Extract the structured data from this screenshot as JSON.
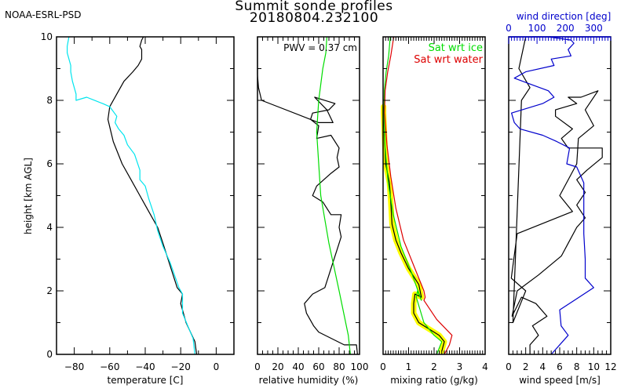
{
  "header": {
    "organization": "NOAA-ESRL-PSD",
    "title": "Summit sonde profiles",
    "subtitle": "20180804.232100"
  },
  "colors": {
    "temperature": "#000000",
    "dewpoint": "#00e5ee",
    "rh": "#000000",
    "rh_ice": "#00dd00",
    "mixing_ratio": "#000000",
    "mixing_ratio_uncertainty": "#ffff00",
    "sat_ice": "#00dd00",
    "sat_water": "#dd0000",
    "wind_speed": "#000000",
    "wind_direction": "#0000cc"
  },
  "chart_data": [
    {
      "type": "line",
      "name": "temperature",
      "xlabel": "temperature [C]",
      "ylabel": "height [km AGL]",
      "xlim": [
        -90,
        10
      ],
      "ylim": [
        0,
        10
      ],
      "xticks": [
        "-80",
        "-60",
        "-40",
        "-20",
        "0"
      ],
      "xtick_values": [
        -80,
        -60,
        -40,
        -20,
        0
      ],
      "yticks": [
        "0",
        "2",
        "4",
        "6",
        "8",
        "10"
      ],
      "ytick_values": [
        0,
        2,
        4,
        6,
        8,
        10
      ],
      "series": [
        {
          "name": "temperature",
          "color_key": "temperature",
          "x": [
            -11,
            -12,
            -17,
            -20,
            -19,
            -22,
            -26,
            -30,
            -33,
            -38,
            -43,
            -48,
            -53,
            -58,
            -61,
            -60,
            -56,
            -52,
            -47,
            -44,
            -42,
            -42,
            -43,
            -42,
            -41
          ],
          "y": [
            0.0,
            0.4,
            1.0,
            1.6,
            1.9,
            2.1,
            2.8,
            3.5,
            4.0,
            4.5,
            5.0,
            5.5,
            6.0,
            6.7,
            7.4,
            7.8,
            8.2,
            8.6,
            8.9,
            9.1,
            9.3,
            9.6,
            9.7,
            9.9,
            10.0
          ]
        },
        {
          "name": "dewpoint",
          "color_key": "dewpoint",
          "x": [
            -12,
            -13,
            -16,
            -19,
            -19,
            -21,
            -26,
            -30,
            -33,
            -35,
            -38,
            -40,
            -43,
            -43,
            -46,
            -50,
            -52,
            -55,
            -57,
            -56,
            -60,
            -64,
            -73,
            -79,
            -79,
            -81,
            -82,
            -82,
            -84,
            -84,
            -83
          ],
          "y": [
            0.0,
            0.5,
            0.9,
            1.3,
            1.9,
            2.1,
            2.9,
            3.4,
            3.9,
            4.4,
            4.9,
            5.3,
            5.5,
            5.8,
            6.3,
            6.6,
            6.9,
            7.1,
            7.3,
            7.5,
            7.8,
            7.9,
            8.1,
            8.0,
            8.2,
            8.6,
            8.9,
            9.1,
            9.5,
            9.7,
            10.0
          ]
        }
      ]
    },
    {
      "type": "line",
      "name": "relative_humidity",
      "xlabel": "relative humidity (%)",
      "xlim": [
        0,
        100
      ],
      "ylim": [
        0,
        10
      ],
      "xticks": [
        "0",
        "20",
        "40",
        "60",
        "80",
        "100"
      ],
      "xtick_values": [
        0,
        20,
        40,
        60,
        80,
        100
      ],
      "annotation": "PWV = 0.37 cm",
      "series": [
        {
          "name": "rh",
          "color_key": "rh",
          "x": [
            98,
            97,
            85,
            60,
            55,
            48,
            46,
            54,
            66,
            70,
            74,
            78,
            82,
            80,
            82,
            72,
            64,
            54,
            58,
            72,
            80,
            78,
            80,
            72,
            58,
            60,
            52,
            54,
            70,
            76,
            56,
            68,
            74,
            60,
            4,
            1,
            0,
            0
          ],
          "y": [
            0.0,
            0.3,
            0.3,
            0.7,
            0.9,
            1.3,
            1.6,
            1.9,
            2.1,
            2.5,
            2.9,
            3.3,
            3.7,
            4.0,
            4.4,
            4.4,
            4.8,
            5.0,
            5.3,
            5.7,
            5.9,
            6.2,
            6.5,
            6.9,
            6.8,
            7.2,
            7.4,
            7.6,
            7.7,
            7.9,
            8.1,
            7.7,
            7.3,
            7.3,
            8.0,
            8.4,
            8.8,
            10.0
          ]
        },
        {
          "name": "rh_wrt_ice",
          "color_key": "rh_ice",
          "x": [
            91,
            89,
            80,
            70,
            62,
            58,
            60,
            64,
            67,
            68
          ],
          "y": [
            0.0,
            0.6,
            2.0,
            3.5,
            5.0,
            7.0,
            8.0,
            9.0,
            9.5,
            10.0
          ]
        }
      ]
    },
    {
      "type": "line",
      "name": "mixing_ratio",
      "xlabel": "mixing ratio (g/kg)",
      "xlim": [
        0,
        4
      ],
      "ylim": [
        0,
        10
      ],
      "xticks": [
        "0",
        "1",
        "2",
        "3",
        "4"
      ],
      "xtick_values": [
        0,
        1,
        2,
        3,
        4
      ],
      "legend": {
        "position": "top-right",
        "entries": [
          "Sat wrt ice",
          "Sat wrt water"
        ]
      },
      "series": [
        {
          "name": "mixing_ratio",
          "color_key": "mixing_ratio",
          "band_color_key": "mixing_ratio_uncertainty",
          "x": [
            2.3,
            2.4,
            2.2,
            1.8,
            1.4,
            1.2,
            1.2,
            1.25,
            1.5,
            1.4,
            1.0,
            0.7,
            0.5,
            0.35,
            0.3,
            0.25,
            0.1,
            0.05,
            0.02,
            0.02
          ],
          "y": [
            0.1,
            0.4,
            0.6,
            0.8,
            1.0,
            1.3,
            1.6,
            1.9,
            1.8,
            2.2,
            2.7,
            3.2,
            3.6,
            4.1,
            4.8,
            5.4,
            6.0,
            7.0,
            7.6,
            7.8
          ]
        },
        {
          "name": "sat_wrt_ice",
          "color_key": "sat_ice",
          "x": [
            2.1,
            2.3,
            2.0,
            1.6,
            1.3,
            1.35,
            1.5,
            1.1,
            0.7,
            0.4,
            0.2,
            0.08,
            0.03,
            0.05,
            0.12,
            0.22,
            0.28
          ],
          "y": [
            0.0,
            0.4,
            0.6,
            1.0,
            1.8,
            2.0,
            1.7,
            2.6,
            3.4,
            4.4,
            5.4,
            6.5,
            7.5,
            8.3,
            8.9,
            9.4,
            10.0
          ]
        },
        {
          "name": "sat_wrt_water",
          "color_key": "sat_water",
          "x": [
            2.4,
            2.6,
            2.7,
            2.1,
            1.6,
            1.65,
            1.6,
            1.2,
            0.8,
            0.5,
            0.3,
            0.15,
            0.06,
            0.08,
            0.18,
            0.3,
            0.42
          ],
          "y": [
            0.0,
            0.3,
            0.6,
            1.1,
            1.7,
            1.8,
            2.0,
            2.8,
            3.6,
            4.6,
            5.6,
            6.6,
            7.6,
            8.3,
            8.9,
            9.4,
            10.0
          ]
        }
      ]
    },
    {
      "type": "line",
      "name": "wind",
      "xlabel": "wind speed [m/s]",
      "xlim": [
        0,
        12
      ],
      "ylim": [
        0,
        10
      ],
      "xticks": [
        "0",
        "2",
        "4",
        "6",
        "8",
        "10",
        "12"
      ],
      "xtick_values": [
        0,
        2,
        4,
        6,
        8,
        10,
        12
      ],
      "top_axis": {
        "label": "wind direction [deg]",
        "xlim": [
          0,
          360
        ],
        "xticks": [
          "0",
          "100",
          "200",
          "300"
        ],
        "xtick_values": [
          0,
          100,
          200,
          300
        ]
      },
      "series": [
        {
          "name": "wind_speed",
          "color_key": "wind_speed",
          "x": [
            2.5,
            2.5,
            3.5,
            2.8,
            4.5,
            3.2,
            1.5,
            0.4,
            1.0,
            3.5,
            6.2,
            7.0,
            8.0,
            9.0,
            8.0,
            9.0,
            8.0,
            9.2,
            11.0,
            11.0,
            7.0,
            6.2,
            7.5,
            5.5,
            5.5,
            8.0,
            7.0,
            8.5,
            10.5,
            9.0,
            10.0,
            8.2,
            8.0,
            6.0,
            7.5,
            1.0,
            0.3,
            2.0,
            0.5,
            1.5,
            2.5,
            1.2,
            2.0
          ],
          "y": [
            0.0,
            0.3,
            0.6,
            0.9,
            1.2,
            1.6,
            1.8,
            1.2,
            2.0,
            2.5,
            3.1,
            3.5,
            4.0,
            4.3,
            4.7,
            5.1,
            5.5,
            5.8,
            6.2,
            6.5,
            6.5,
            6.8,
            7.1,
            7.5,
            7.7,
            7.9,
            8.1,
            8.1,
            8.3,
            7.7,
            7.2,
            6.8,
            6.0,
            5.0,
            4.5,
            3.8,
            2.4,
            2.0,
            1.0,
            8.0,
            8.4,
            9.0,
            10.0
          ]
        },
        {
          "name": "wind_direction",
          "color_key": "wind_direction",
          "x_units": "deg",
          "x": [
            150,
            210,
            185,
            180,
            300,
            270,
            270,
            265,
            265,
            240,
            205,
            215,
            170,
            120,
            40,
            20,
            10,
            120,
            160,
            140,
            80,
            20,
            60,
            160,
            150,
            220,
            210,
            230,
            220,
            140,
            80,
            150,
            130
          ],
          "y": [
            0.0,
            0.6,
            0.9,
            1.4,
            2.1,
            2.4,
            3.0,
            3.8,
            5.4,
            5.9,
            6.0,
            6.5,
            6.7,
            6.9,
            7.1,
            7.3,
            7.6,
            7.9,
            8.1,
            8.3,
            8.5,
            8.7,
            8.9,
            9.1,
            9.3,
            9.4,
            9.6,
            9.8,
            9.9,
            10.0,
            10.0,
            10.0,
            10.0
          ]
        }
      ]
    }
  ]
}
